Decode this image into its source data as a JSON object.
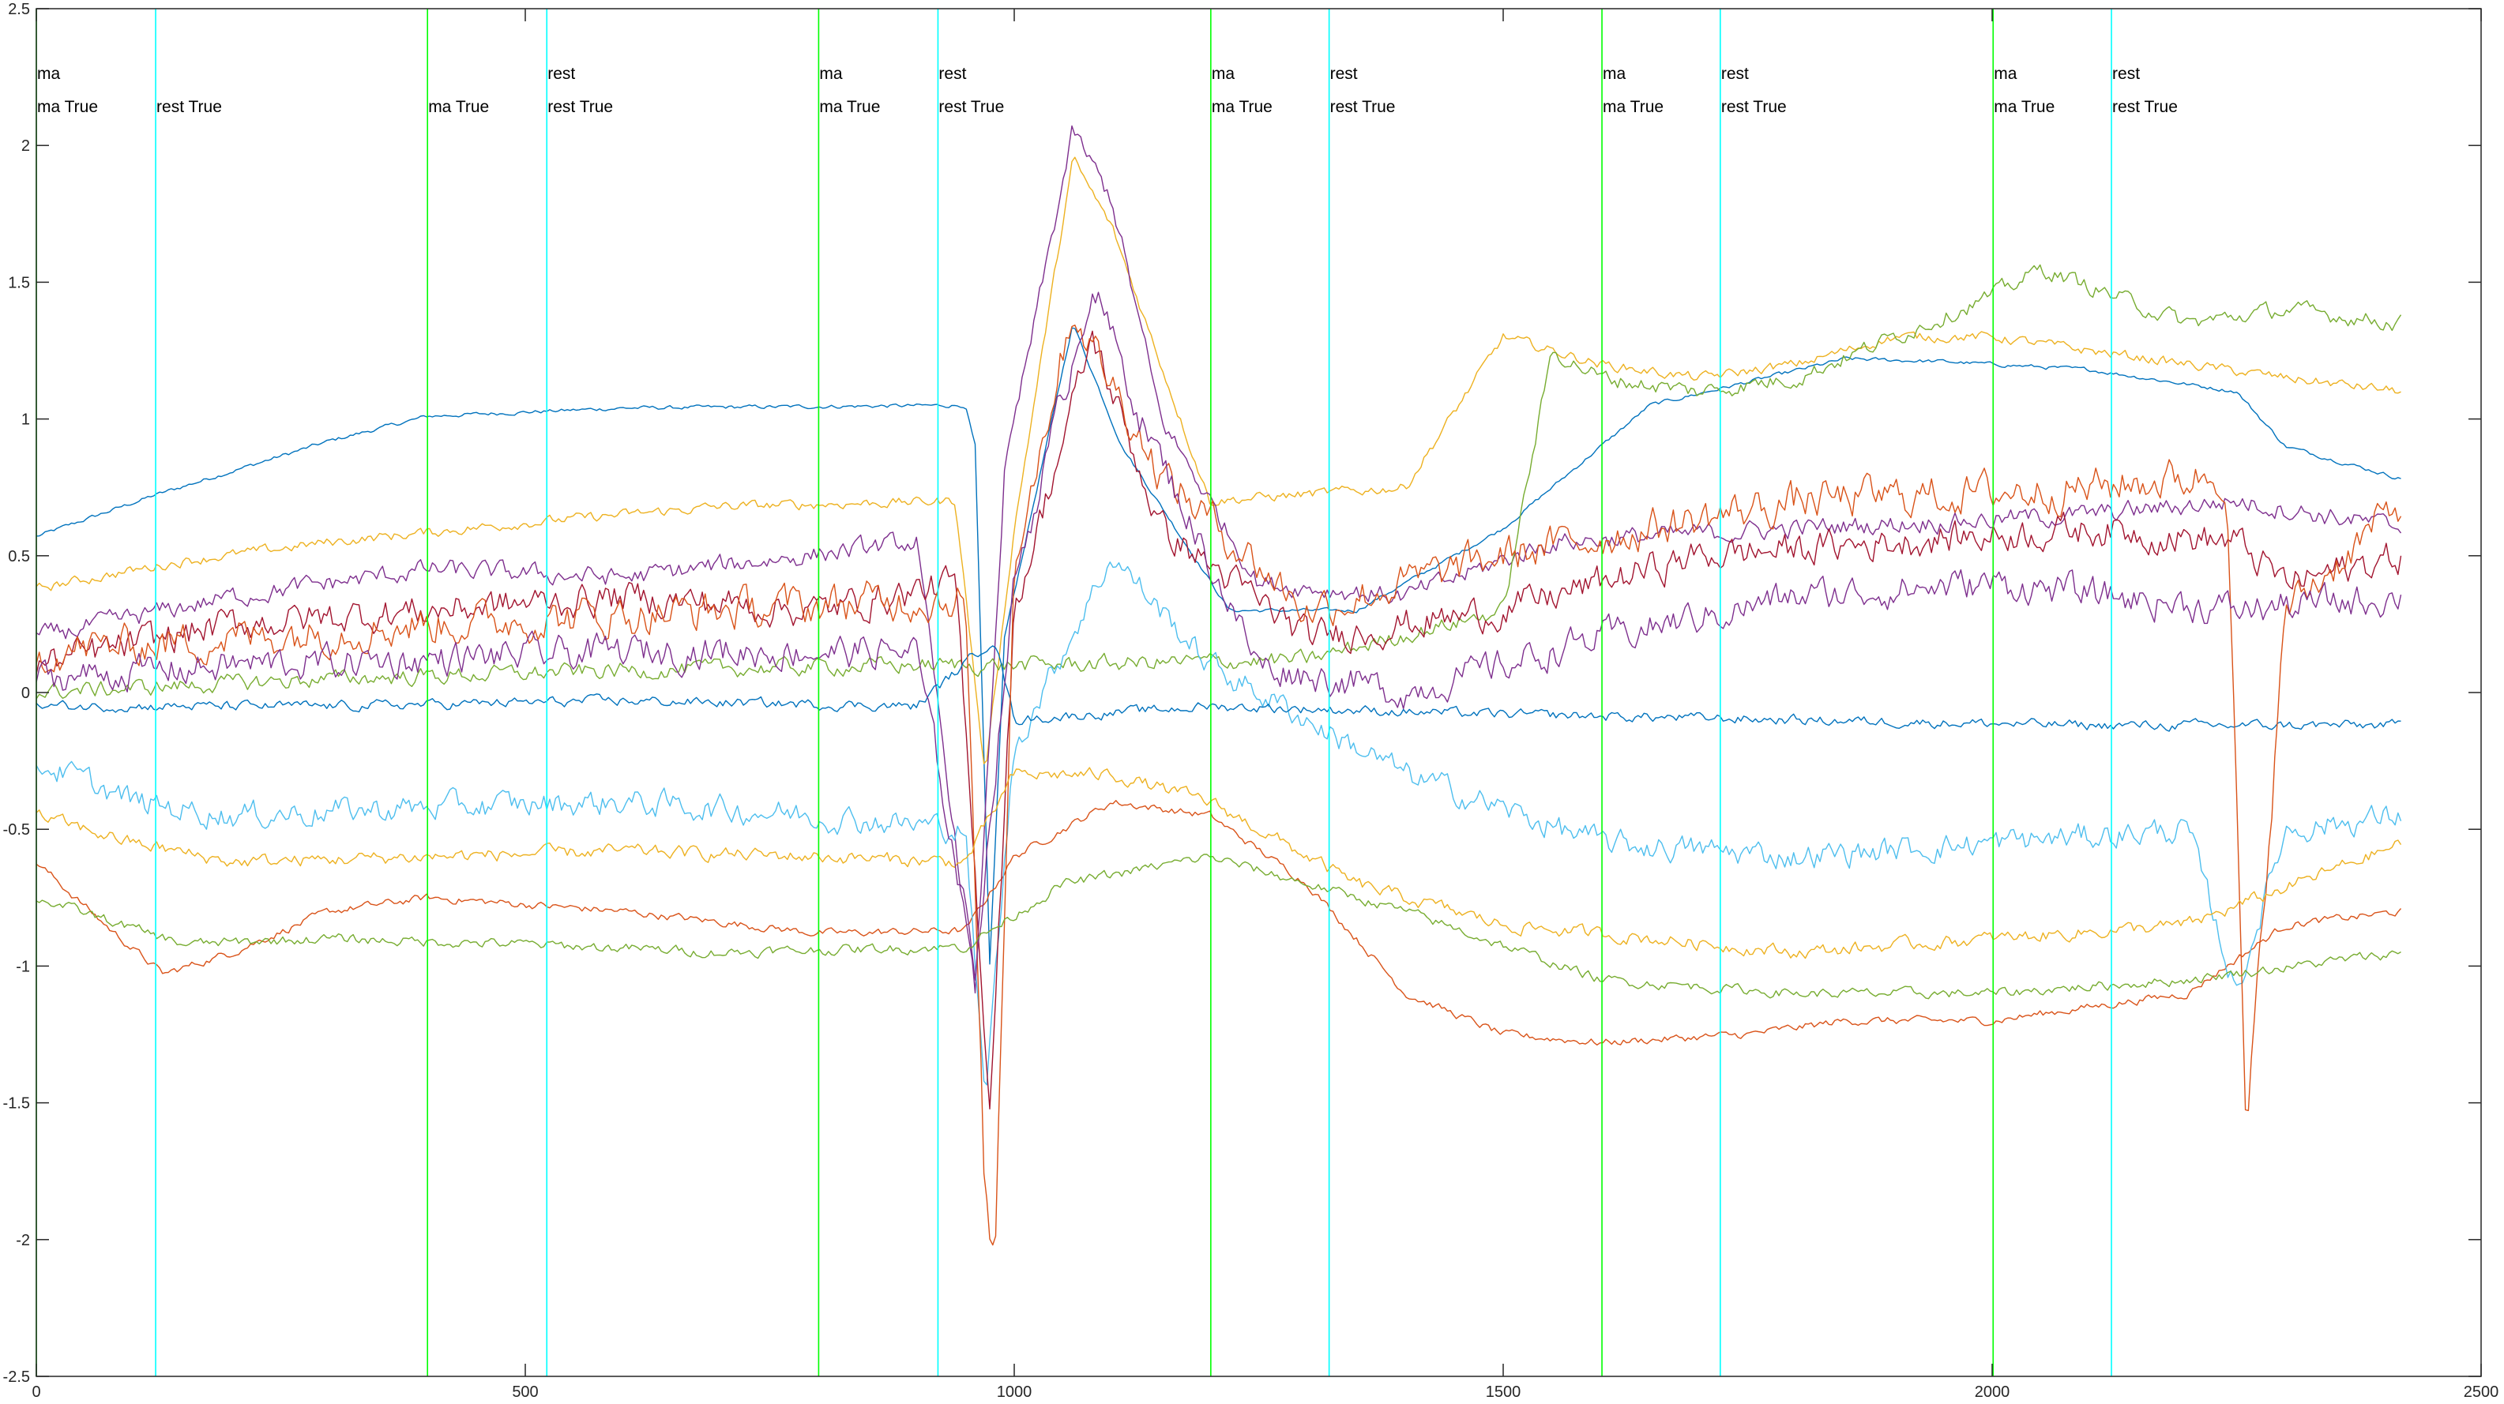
{
  "chart_data": {
    "type": "line",
    "title": "",
    "xlabel": "",
    "ylabel": "",
    "xlim": [
      0,
      2500
    ],
    "ylim": [
      -2.5,
      2.5
    ],
    "grid": false,
    "legend": "none",
    "x_ticks": [
      0,
      500,
      1000,
      1500,
      2000,
      2500
    ],
    "y_ticks": [
      -2.5,
      -2,
      -1.5,
      -1,
      -0.5,
      0,
      0.5,
      1,
      1.5,
      2,
      2.5
    ],
    "x_tick_labels": [
      "0",
      "500",
      "1000",
      "1500",
      "2000",
      "2500"
    ],
    "y_tick_labels": [
      "-2.5",
      "-2",
      "-1.5",
      "-1",
      "-0.5",
      "0",
      "0.5",
      "1",
      "1.5",
      "2",
      "2.5"
    ],
    "sample_count": 2420,
    "event_colors": {
      "ma": "#00ff00",
      "rest": "#00ffff"
    },
    "events": [
      {
        "type": "ma",
        "x": 0,
        "labels": [
          "ma",
          "ma True"
        ]
      },
      {
        "type": "rest",
        "x": 122,
        "labels": [
          "rest True"
        ]
      },
      {
        "type": "ma",
        "x": 400,
        "labels": [
          "ma True"
        ]
      },
      {
        "type": "rest",
        "x": 522,
        "labels": [
          "rest",
          "rest True"
        ]
      },
      {
        "type": "ma",
        "x": 800,
        "labels": [
          "ma",
          "ma True"
        ]
      },
      {
        "type": "rest",
        "x": 922,
        "labels": [
          "rest",
          "rest True"
        ]
      },
      {
        "type": "ma",
        "x": 1201,
        "labels": [
          "ma",
          "ma True"
        ]
      },
      {
        "type": "rest",
        "x": 1322,
        "labels": [
          "rest",
          "rest True"
        ]
      },
      {
        "type": "ma",
        "x": 1601,
        "labels": [
          "ma",
          "ma True"
        ]
      },
      {
        "type": "rest",
        "x": 1722,
        "labels": [
          "rest",
          "rest True"
        ]
      },
      {
        "type": "ma",
        "x": 2001,
        "labels": [
          "ma",
          "ma True"
        ]
      },
      {
        "type": "rest",
        "x": 2122,
        "labels": [
          "rest",
          "rest True"
        ]
      }
    ],
    "palette": [
      "#0072bd",
      "#d95319",
      "#edb120",
      "#7e2f8e",
      "#77ac30",
      "#4dbeee",
      "#a2142f"
    ],
    "series": [
      {
        "points": [
          [
            0,
            0.57
          ],
          [
            120,
            0.72
          ],
          [
            300,
            0.92
          ],
          [
            400,
            1.01
          ],
          [
            600,
            1.04
          ],
          [
            950,
            1.05
          ],
          [
            960,
            0.9
          ],
          [
            975,
            -1.0
          ],
          [
            990,
            0.2
          ],
          [
            1060,
            1.35
          ],
          [
            1110,
            0.9
          ],
          [
            1220,
            0.3
          ],
          [
            1350,
            0.3
          ],
          [
            1500,
            0.6
          ],
          [
            1650,
            1.05
          ],
          [
            1850,
            1.22
          ],
          [
            1950,
            1.21
          ],
          [
            2100,
            1.18
          ],
          [
            2250,
            1.1
          ],
          [
            2300,
            0.9
          ],
          [
            2420,
            0.78
          ]
        ],
        "noise": 0.006
      },
      {
        "points": [
          [
            0,
            -0.62
          ],
          [
            80,
            -0.88
          ],
          [
            130,
            -1.03
          ],
          [
            200,
            -0.95
          ],
          [
            300,
            -0.8
          ],
          [
            400,
            -0.75
          ],
          [
            600,
            -0.8
          ],
          [
            800,
            -0.88
          ],
          [
            950,
            -0.87
          ],
          [
            1000,
            -0.6
          ],
          [
            1100,
            -0.4
          ],
          [
            1200,
            -0.45
          ],
          [
            1300,
            -0.7
          ],
          [
            1400,
            -1.1
          ],
          [
            1500,
            -1.25
          ],
          [
            1600,
            -1.28
          ],
          [
            1750,
            -1.25
          ],
          [
            1850,
            -1.2
          ],
          [
            2000,
            -1.2
          ],
          [
            2100,
            -1.15
          ],
          [
            2200,
            -1.1
          ],
          [
            2300,
            -0.85
          ],
          [
            2420,
            -0.8
          ]
        ],
        "noise": 0.012
      },
      {
        "points": [
          [
            0,
            0.38
          ],
          [
            150,
            0.48
          ],
          [
            300,
            0.55
          ],
          [
            500,
            0.62
          ],
          [
            700,
            0.68
          ],
          [
            940,
            0.7
          ],
          [
            970,
            -0.3
          ],
          [
            1000,
            0.6
          ],
          [
            1060,
            1.95
          ],
          [
            1100,
            1.7
          ],
          [
            1200,
            0.7
          ],
          [
            1400,
            0.75
          ],
          [
            1500,
            1.3
          ],
          [
            1600,
            1.2
          ],
          [
            1700,
            1.15
          ],
          [
            1800,
            1.2
          ],
          [
            1900,
            1.3
          ],
          [
            2000,
            1.3
          ],
          [
            2200,
            1.2
          ],
          [
            2300,
            1.15
          ],
          [
            2420,
            1.1
          ]
        ],
        "noise": 0.015
      },
      {
        "points": [
          [
            0,
            0.2
          ],
          [
            200,
            0.35
          ],
          [
            400,
            0.45
          ],
          [
            600,
            0.42
          ],
          [
            900,
            0.55
          ],
          [
            960,
            -1.1
          ],
          [
            990,
            0.8
          ],
          [
            1060,
            2.05
          ],
          [
            1100,
            1.8
          ],
          [
            1150,
            1.0
          ],
          [
            1250,
            0.4
          ],
          [
            1400,
            0.35
          ],
          [
            1550,
            0.55
          ],
          [
            1800,
            0.6
          ],
          [
            2100,
            0.65
          ],
          [
            2250,
            0.7
          ],
          [
            2420,
            0.6
          ]
        ],
        "noise": 0.03
      },
      {
        "points": [
          [
            0,
            0.0
          ],
          [
            300,
            0.05
          ],
          [
            600,
            0.08
          ],
          [
            900,
            0.1
          ],
          [
            1000,
            0.1
          ],
          [
            1300,
            0.12
          ],
          [
            1500,
            0.3
          ],
          [
            1550,
            1.25
          ],
          [
            1600,
            1.15
          ],
          [
            1700,
            1.1
          ],
          [
            1800,
            1.15
          ],
          [
            1900,
            1.3
          ],
          [
            2000,
            1.45
          ],
          [
            2050,
            1.55
          ],
          [
            2200,
            1.35
          ],
          [
            2300,
            1.4
          ],
          [
            2420,
            1.35
          ]
        ],
        "noise": 0.025
      },
      {
        "points": [
          [
            0,
            -0.25
          ],
          [
            100,
            -0.4
          ],
          [
            200,
            -0.45
          ],
          [
            400,
            -0.42
          ],
          [
            600,
            -0.4
          ],
          [
            800,
            -0.45
          ],
          [
            950,
            -0.5
          ],
          [
            970,
            -1.5
          ],
          [
            1000,
            -0.2
          ],
          [
            1100,
            0.5
          ],
          [
            1200,
            0.1
          ],
          [
            1400,
            -0.3
          ],
          [
            1600,
            -0.55
          ],
          [
            1800,
            -0.6
          ],
          [
            2000,
            -0.55
          ],
          [
            2200,
            -0.5
          ],
          [
            2250,
            -1.1
          ],
          [
            2300,
            -0.5
          ],
          [
            2420,
            -0.45
          ]
        ],
        "noise": 0.04
      },
      {
        "points": [
          [
            0,
            0.1
          ],
          [
            200,
            0.25
          ],
          [
            400,
            0.3
          ],
          [
            600,
            0.35
          ],
          [
            800,
            0.3
          ],
          [
            940,
            0.4
          ],
          [
            975,
            -1.5
          ],
          [
            1000,
            0.3
          ],
          [
            1080,
            1.3
          ],
          [
            1150,
            0.6
          ],
          [
            1300,
            0.2
          ],
          [
            1500,
            0.3
          ],
          [
            1700,
            0.5
          ],
          [
            1900,
            0.55
          ],
          [
            2100,
            0.6
          ],
          [
            2250,
            0.55
          ],
          [
            2300,
            0.4
          ],
          [
            2420,
            0.5
          ]
        ],
        "noise": 0.05
      },
      {
        "points": [
          [
            0,
            -0.05
          ],
          [
            300,
            -0.05
          ],
          [
            600,
            -0.03
          ],
          [
            900,
            -0.05
          ],
          [
            980,
            0.2
          ],
          [
            1000,
            -0.1
          ],
          [
            1200,
            -0.05
          ],
          [
            1500,
            -0.08
          ],
          [
            1800,
            -0.1
          ],
          [
            2100,
            -0.12
          ],
          [
            2420,
            -0.12
          ]
        ],
        "noise": 0.015
      },
      {
        "points": [
          [
            0,
            0.15
          ],
          [
            200,
            0.2
          ],
          [
            400,
            0.25
          ],
          [
            700,
            0.3
          ],
          [
            950,
            0.35
          ],
          [
            970,
            -1.85
          ],
          [
            980,
            -2.1
          ],
          [
            1000,
            0.5
          ],
          [
            1060,
            1.4
          ],
          [
            1150,
            0.8
          ],
          [
            1300,
            0.3
          ],
          [
            1500,
            0.5
          ],
          [
            1800,
            0.7
          ],
          [
            2100,
            0.75
          ],
          [
            2240,
            0.8
          ],
          [
            2260,
            -1.65
          ],
          [
            2300,
            0.3
          ],
          [
            2420,
            0.7
          ]
        ],
        "noise": 0.06
      },
      {
        "points": [
          [
            0,
            -0.45
          ],
          [
            100,
            -0.55
          ],
          [
            200,
            -0.62
          ],
          [
            400,
            -0.6
          ],
          [
            600,
            -0.58
          ],
          [
            800,
            -0.6
          ],
          [
            950,
            -0.62
          ],
          [
            1000,
            -0.3
          ],
          [
            1100,
            -0.3
          ],
          [
            1200,
            -0.4
          ],
          [
            1350,
            -0.7
          ],
          [
            1500,
            -0.85
          ],
          [
            1650,
            -0.9
          ],
          [
            1800,
            -0.95
          ],
          [
            2000,
            -0.9
          ],
          [
            2200,
            -0.85
          ],
          [
            2420,
            -0.55
          ]
        ],
        "noise": 0.02
      },
      {
        "points": [
          [
            0,
            0.05
          ],
          [
            200,
            0.1
          ],
          [
            400,
            0.12
          ],
          [
            600,
            0.15
          ],
          [
            900,
            0.15
          ],
          [
            960,
            -1.0
          ],
          [
            1000,
            0.4
          ],
          [
            1080,
            1.5
          ],
          [
            1130,
            1.0
          ],
          [
            1250,
            0.1
          ],
          [
            1400,
            0.0
          ],
          [
            1600,
            0.2
          ],
          [
            1800,
            0.35
          ],
          [
            2000,
            0.4
          ],
          [
            2250,
            0.3
          ],
          [
            2420,
            0.35
          ]
        ],
        "noise": 0.05
      },
      {
        "points": [
          [
            0,
            -0.75
          ],
          [
            150,
            -0.92
          ],
          [
            300,
            -0.9
          ],
          [
            500,
            -0.92
          ],
          [
            700,
            -0.95
          ],
          [
            950,
            -0.93
          ],
          [
            1050,
            -0.7
          ],
          [
            1200,
            -0.6
          ],
          [
            1400,
            -0.8
          ],
          [
            1600,
            -1.05
          ],
          [
            1800,
            -1.1
          ],
          [
            2000,
            -1.1
          ],
          [
            2200,
            -1.05
          ],
          [
            2420,
            -0.95
          ]
        ],
        "noise": 0.015
      }
    ]
  }
}
